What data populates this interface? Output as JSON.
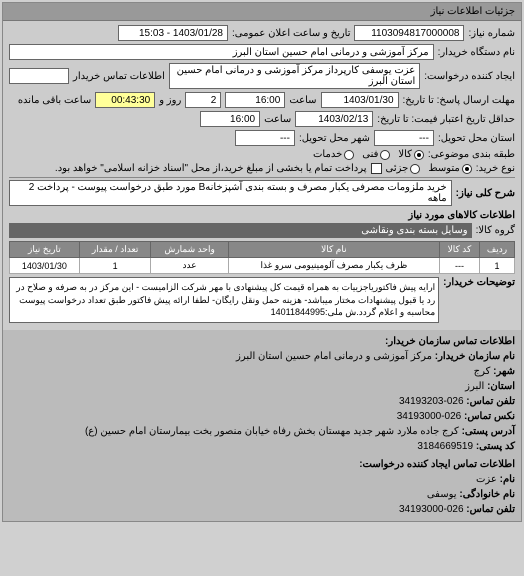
{
  "panel_title": "جزئیات اطلاعات نیاز",
  "req_number_label": "شماره نیاز:",
  "req_number": "1103094817000008",
  "pub_datetime_label": "تاریخ و ساعت اعلان عمومی:",
  "pub_datetime": "1403/01/28 - 15:03",
  "buyer_name_label": "نام دستگاه خریدار:",
  "buyer_name": "مرکز آموزشی و درمانی امام حسین استان البرز",
  "creator_label": "ایجاد کننده درخواست:",
  "creator": "عزت یوسفی کارپرداز مرکز آموزشی و درمانی امام حسین استان البرز",
  "contact_info_label": "اطلاعات تماس خریدار",
  "response_deadline_label": "مهلت ارسال پاسخ: تا تاریخ:",
  "response_deadline_date": "1403/01/30",
  "time_label": "ساعت",
  "response_deadline_time": "16:00",
  "days_label": "روز و",
  "days_val": "2",
  "remaining_time": "00:43:30",
  "remaining_label": "ساعت باقی مانده",
  "validity_label": "حداقل تاریخ اعتبار فیمت: تا تاریخ:",
  "validity_date": "1403/02/13",
  "validity_time": "16:00",
  "delivery_addr_label": "استان محل تحویل:",
  "delivery_addr": "---",
  "delivery_city_label": "شهر محل تحویل:",
  "delivery_city": "---",
  "budget_type_label": "طبقه بندی موضوعی:",
  "radio_kala": "کالا",
  "radio_fani": "فنی",
  "radio_masrafi": "خدمات",
  "purchase_type_label": "نوع خرید:",
  "radio_medium": "متوسط",
  "radio_minor": "جزئی",
  "payment_note": "پرداخت تمام یا بخشی از مبلغ خرید،از محل \"اسناد خزانه اسلامی\" خواهد بود.",
  "need_desc_label": "شرح کلی نیاز:",
  "need_desc": "خرید ملزومات مصرفی یکبار مصرف و بسته بندی آشپزخانهB مورد طبق درخواست پیوست - پرداخت 2 ماهه",
  "goods_info_title": "اطلاعات کالاهای مورد نیاز",
  "goods_group_label": "گروه کالا:",
  "goods_group": "وسایل بسته بندی  ونقاشی",
  "table": {
    "headers": [
      "ردیف",
      "کد کالا",
      "نام کالا",
      "واحد شمارش",
      "تعداد / مقدار",
      "تاریخ نیاز"
    ],
    "rows": [
      [
        "1",
        "---",
        "ظرف یکبار مصرف آلومینیومی سرو غذا",
        "عدد",
        "1",
        "1403/01/30"
      ]
    ]
  },
  "buyer_notes_label": "توضیحات خریدار:",
  "buyer_notes": "ارایه پیش فاکتوریاجزییات به همراه قیمت کل پیشنهادی با مهر شرکت الزامیست - این مرکز در به صرفه و صلاح در رد یا قبول پیشنهادات مختار میباشد- هزینه حمل ونقل رایگان- لطفا ارائه پیش فاکتور طبق تعداد درخواست پیوست محاسبه و اعلام گردد.ش ملی:14011844995",
  "contact_buyer_title": "اطلاعات تماس سازمان خریدار:",
  "org_name_label": "نام سازمان خریدار:",
  "org_name": "مرکز آموزشی و درمانی امام حسین استان البرز",
  "city_label": "شهر:",
  "city": "کرج",
  "province_label": "استان:",
  "province": "البرز",
  "phone_label": "تلفن تماس:",
  "phone": "026-34193203",
  "fax_label": "نکس تماس:",
  "fax": "026-34193000",
  "postal_label": "آدرس پستی:",
  "postal": "کرج جاده ملارد شهر جدید مهستان بخش رفاه خیابان منصور بخت بیمارستان امام حسین (ع)",
  "postcode_label": "کد پستی:",
  "postcode": "3184669519",
  "creator_contact_title": "اطلاعات تماس ایجاد کننده درخواست:",
  "c_name_label": "نام:",
  "c_name": "عزت",
  "c_family_label": "نام خانوادگی:",
  "c_family": "یوسفی",
  "c_phone_label": "تلفن تماس:",
  "c_phone": "026-34193000"
}
